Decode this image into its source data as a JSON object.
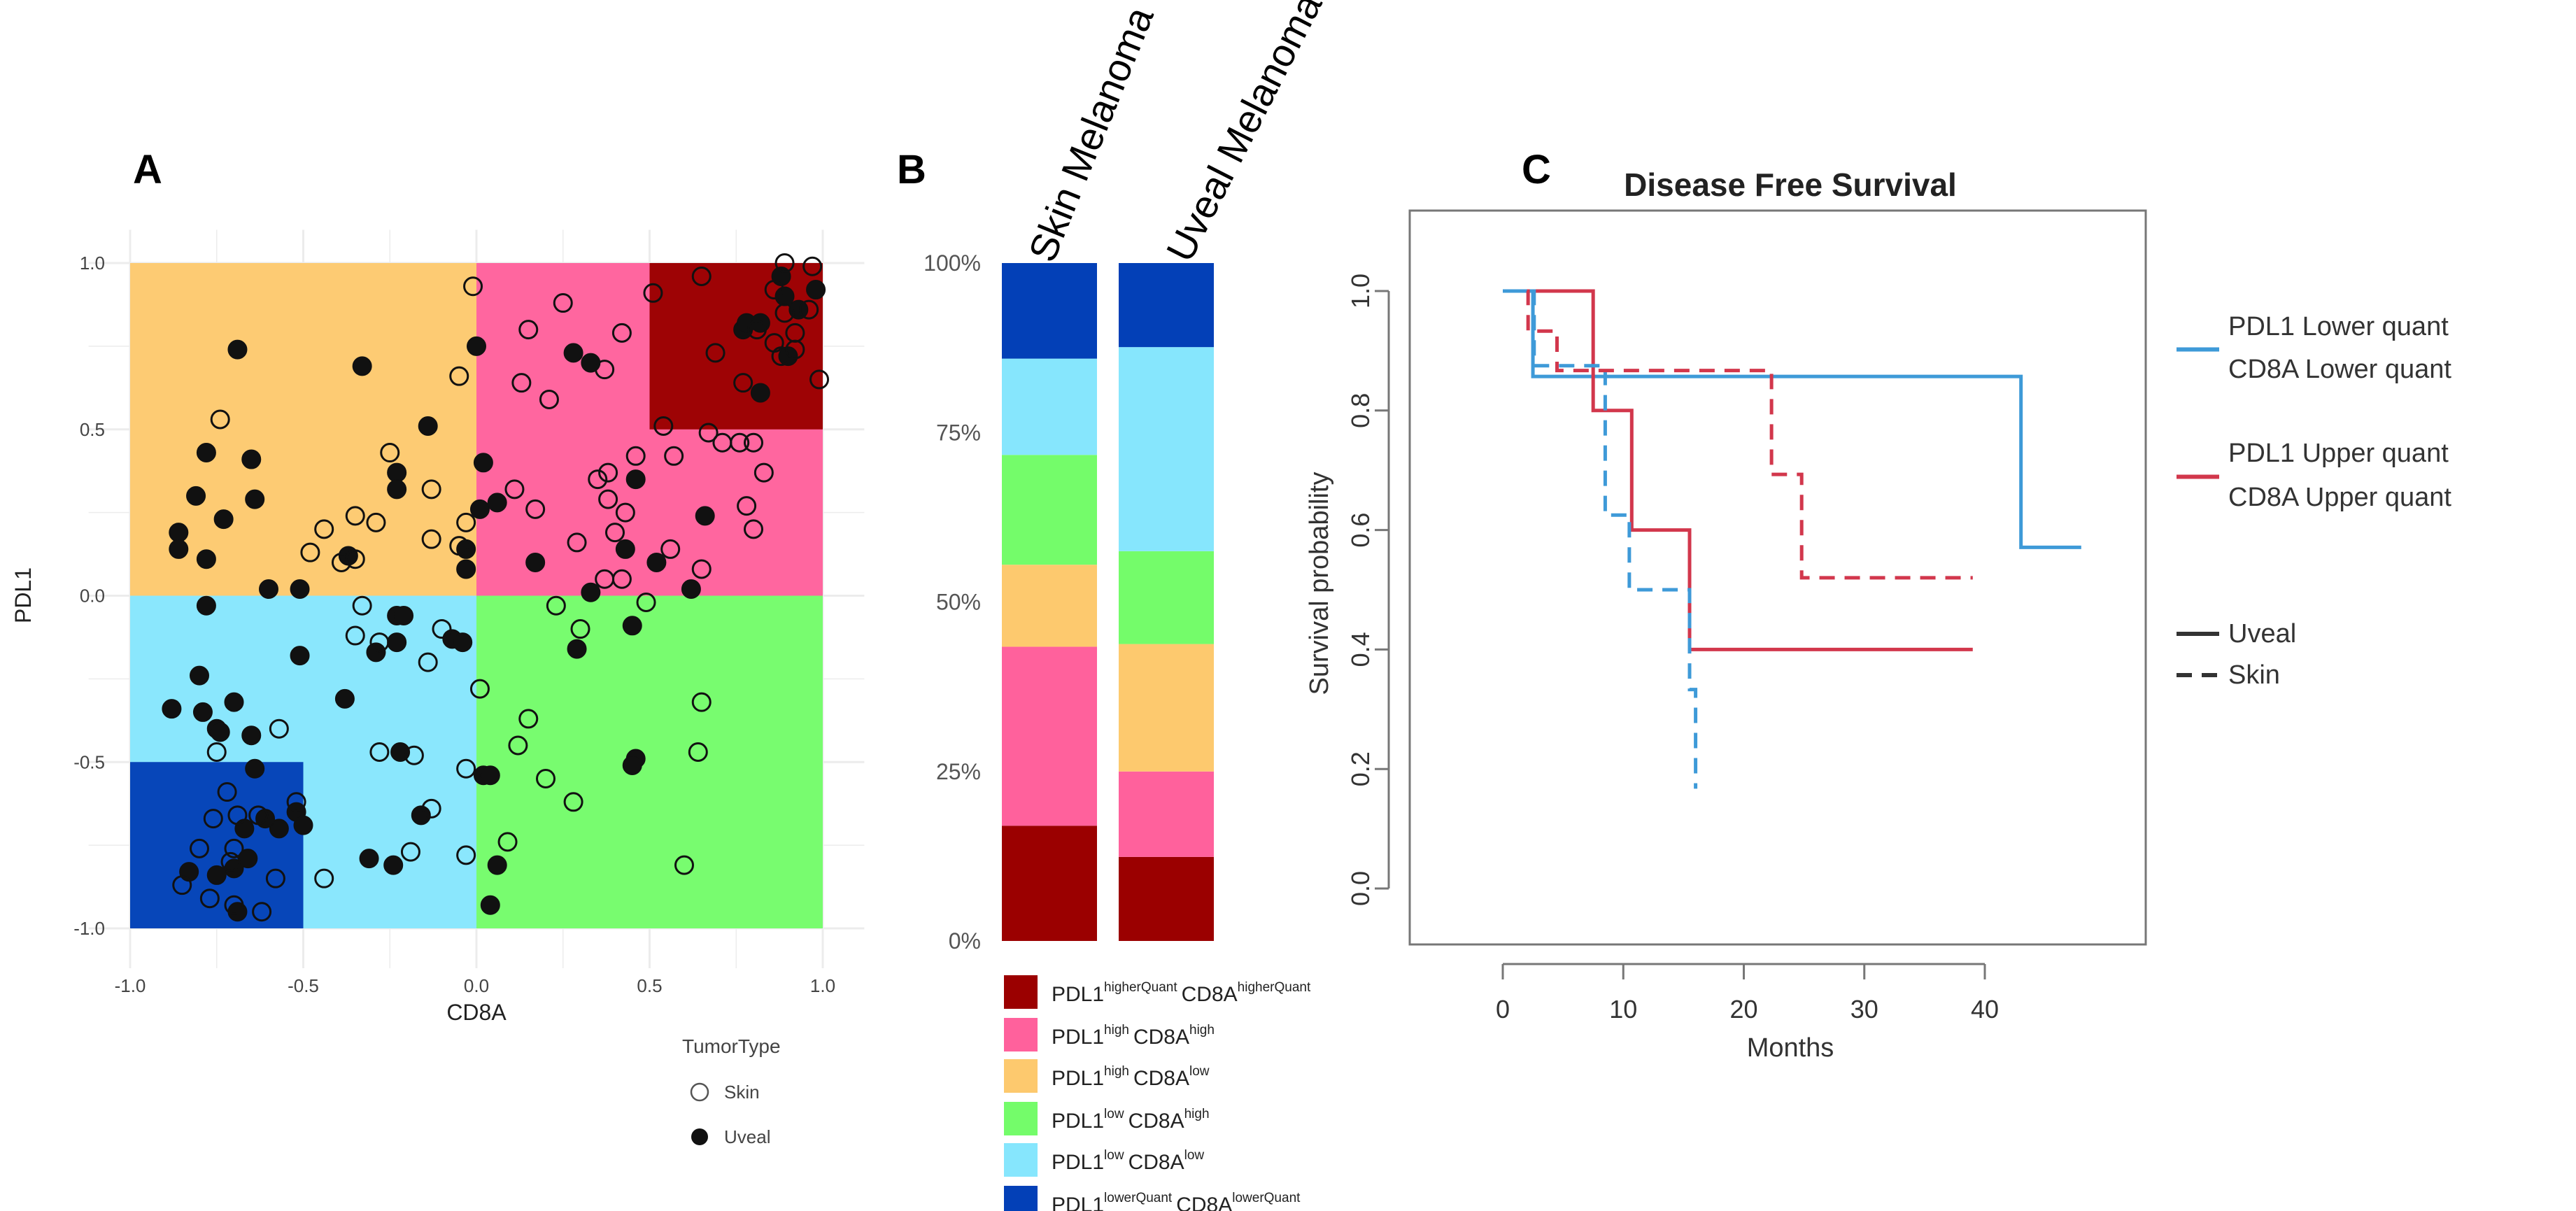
{
  "panels": {
    "a": "A",
    "b": "B",
    "c": "C"
  },
  "colors": {
    "higherQuant": "#9B0000",
    "highhigh": "#FF619C",
    "highlow": "#FDC96E",
    "lowhigh": "#74FC6A",
    "lowlow": "#86E6FD",
    "lowerQuant": "#0340B7",
    "km_blue": "#3E9AD8",
    "km_red": "#D2374C"
  },
  "chart_data": [
    {
      "type": "scatter",
      "xlabel": "CD8A",
      "ylabel": "PDL1",
      "xlim": [
        -1,
        1
      ],
      "ylim": [
        -1,
        1
      ],
      "xticks": [
        "-1.0",
        "-0.5",
        "0.0",
        "0.5",
        "1.0"
      ],
      "yticks": [
        "1.0",
        "0.5",
        "0.0",
        "-0.5",
        "-1.0"
      ],
      "legend": {
        "title": "TumorType",
        "entries": [
          "Skin",
          "Uveal"
        ],
        "placement": "bottom-right"
      },
      "regions": [
        {
          "name": "PDL1 high CD8A low",
          "x": [
            -1,
            0
          ],
          "y": [
            0,
            1
          ],
          "color": "#FDC96E"
        },
        {
          "name": "PDL1 high CD8A high",
          "x": [
            0,
            1
          ],
          "y": [
            0,
            1
          ],
          "color": "#FF619C"
        },
        {
          "name": "PDL1 higherQuant CD8A higherQuant",
          "x": [
            0.5,
            1
          ],
          "y": [
            0.5,
            1
          ],
          "color": "#9B0000"
        },
        {
          "name": "PDL1 low CD8A low",
          "x": [
            -1,
            0
          ],
          "y": [
            -1,
            0
          ],
          "color": "#86E6FD"
        },
        {
          "name": "PDL1 low CD8A high",
          "x": [
            0,
            1
          ],
          "y": [
            -1,
            0
          ],
          "color": "#74FC6A"
        },
        {
          "name": "PDL1 lowerQuant CD8A lowerQuant",
          "x": [
            -1,
            -0.5
          ],
          "y": [
            -1,
            -0.5
          ],
          "color": "#0340B7"
        }
      ],
      "series": [
        {
          "name": "Uveal",
          "marker": "filled",
          "points": [
            [
              -0.69,
              0.74
            ],
            [
              -0.33,
              0.69
            ],
            [
              0.0,
              0.75
            ],
            [
              -0.14,
              0.51
            ],
            [
              -0.78,
              0.43
            ],
            [
              -0.65,
              0.41
            ],
            [
              -0.81,
              0.3
            ],
            [
              -0.64,
              0.29
            ],
            [
              -0.73,
              0.23
            ],
            [
              -0.86,
              0.19
            ],
            [
              -0.86,
              0.14
            ],
            [
              -0.78,
              0.11
            ],
            [
              -0.23,
              0.37
            ],
            [
              -0.23,
              0.32
            ],
            [
              -0.37,
              0.12
            ],
            [
              -0.6,
              0.02
            ],
            [
              -0.51,
              0.02
            ],
            [
              -0.03,
              0.14
            ],
            [
              -0.03,
              0.08
            ],
            [
              0.01,
              0.26
            ],
            [
              0.02,
              0.4
            ],
            [
              0.06,
              0.28
            ],
            [
              0.28,
              0.73
            ],
            [
              0.33,
              0.7
            ],
            [
              0.17,
              0.1
            ],
            [
              0.33,
              0.01
            ],
            [
              0.43,
              0.14
            ],
            [
              0.46,
              0.35
            ],
            [
              0.52,
              0.1
            ],
            [
              0.62,
              0.02
            ],
            [
              0.66,
              0.24
            ],
            [
              0.77,
              0.8
            ],
            [
              0.78,
              0.82
            ],
            [
              0.82,
              0.82
            ],
            [
              0.88,
              0.96
            ],
            [
              0.89,
              0.9
            ],
            [
              0.93,
              0.86
            ],
            [
              0.9,
              0.72
            ],
            [
              0.82,
              0.61
            ],
            [
              0.98,
              0.92
            ],
            [
              -0.78,
              -0.03
            ],
            [
              -0.51,
              -0.18
            ],
            [
              -0.23,
              -0.06
            ],
            [
              -0.21,
              -0.06
            ],
            [
              -0.23,
              -0.14
            ],
            [
              -0.29,
              -0.17
            ],
            [
              -0.07,
              -0.13
            ],
            [
              -0.04,
              -0.14
            ],
            [
              -0.38,
              -0.31
            ],
            [
              -0.7,
              -0.32
            ],
            [
              -0.8,
              -0.24
            ],
            [
              -0.88,
              -0.34
            ],
            [
              -0.79,
              -0.35
            ],
            [
              -0.75,
              -0.4
            ],
            [
              -0.74,
              -0.41
            ],
            [
              -0.65,
              -0.42
            ],
            [
              -0.64,
              -0.52
            ],
            [
              -0.22,
              -0.47
            ],
            [
              -0.16,
              -0.66
            ],
            [
              -0.31,
              -0.79
            ],
            [
              -0.24,
              -0.81
            ],
            [
              -0.52,
              -0.65
            ],
            [
              -0.5,
              -0.69
            ],
            [
              -0.57,
              -0.7
            ],
            [
              -0.61,
              -0.67
            ],
            [
              -0.67,
              -0.7
            ],
            [
              -0.66,
              -0.79
            ],
            [
              -0.7,
              -0.82
            ],
            [
              -0.75,
              -0.84
            ],
            [
              -0.83,
              -0.83
            ],
            [
              -0.69,
              -0.95
            ],
            [
              0.29,
              -0.16
            ],
            [
              0.45,
              -0.09
            ],
            [
              0.46,
              -0.49
            ],
            [
              0.45,
              -0.51
            ],
            [
              0.02,
              -0.54
            ],
            [
              0.04,
              -0.54
            ],
            [
              0.06,
              -0.81
            ],
            [
              0.04,
              -0.93
            ]
          ]
        },
        {
          "name": "Skin",
          "marker": "open",
          "points": [
            [
              -0.01,
              0.93
            ],
            [
              -0.74,
              0.53
            ],
            [
              -0.05,
              0.66
            ],
            [
              -0.25,
              0.43
            ],
            [
              -0.13,
              0.32
            ],
            [
              -0.35,
              0.24
            ],
            [
              -0.29,
              0.22
            ],
            [
              -0.44,
              0.2
            ],
            [
              -0.48,
              0.13
            ],
            [
              -0.39,
              0.1
            ],
            [
              -0.35,
              0.11
            ],
            [
              -0.13,
              0.17
            ],
            [
              -0.05,
              0.15
            ],
            [
              -0.03,
              0.22
            ],
            [
              0.25,
              0.88
            ],
            [
              0.15,
              0.8
            ],
            [
              0.42,
              0.79
            ],
            [
              0.13,
              0.64
            ],
            [
              0.21,
              0.59
            ],
            [
              0.37,
              0.68
            ],
            [
              0.51,
              0.91
            ],
            [
              0.65,
              0.96
            ],
            [
              0.54,
              0.51
            ],
            [
              0.46,
              0.42
            ],
            [
              0.57,
              0.42
            ],
            [
              0.67,
              0.49
            ],
            [
              0.71,
              0.46
            ],
            [
              0.76,
              0.46
            ],
            [
              0.8,
              0.46
            ],
            [
              0.83,
              0.37
            ],
            [
              0.38,
              0.37
            ],
            [
              0.35,
              0.35
            ],
            [
              0.38,
              0.29
            ],
            [
              0.43,
              0.25
            ],
            [
              0.4,
              0.19
            ],
            [
              0.29,
              0.16
            ],
            [
              0.56,
              0.14
            ],
            [
              0.65,
              0.08
            ],
            [
              0.78,
              0.27
            ],
            [
              0.8,
              0.2
            ],
            [
              0.37,
              0.05
            ],
            [
              0.42,
              0.05
            ],
            [
              0.11,
              0.32
            ],
            [
              0.17,
              0.26
            ],
            [
              0.89,
              1.0
            ],
            [
              0.97,
              0.99
            ],
            [
              0.86,
              0.92
            ],
            [
              0.89,
              0.85
            ],
            [
              0.92,
              0.79
            ],
            [
              0.86,
              0.76
            ],
            [
              0.88,
              0.72
            ],
            [
              0.92,
              0.74
            ],
            [
              0.69,
              0.73
            ],
            [
              0.77,
              0.64
            ],
            [
              0.99,
              0.65
            ],
            [
              0.81,
              0.8
            ],
            [
              0.96,
              0.86
            ],
            [
              -0.33,
              -0.03
            ],
            [
              -0.35,
              -0.12
            ],
            [
              -0.28,
              -0.14
            ],
            [
              -0.1,
              -0.1
            ],
            [
              -0.14,
              -0.2
            ],
            [
              -0.57,
              -0.4
            ],
            [
              -0.75,
              -0.47
            ],
            [
              -0.28,
              -0.47
            ],
            [
              -0.18,
              -0.48
            ],
            [
              -0.03,
              -0.52
            ],
            [
              -0.13,
              -0.64
            ],
            [
              -0.19,
              -0.77
            ],
            [
              -0.03,
              -0.78
            ],
            [
              -0.44,
              -0.85
            ],
            [
              -0.72,
              -0.59
            ],
            [
              -0.76,
              -0.67
            ],
            [
              -0.69,
              -0.66
            ],
            [
              -0.63,
              -0.66
            ],
            [
              -0.52,
              -0.62
            ],
            [
              -0.8,
              -0.76
            ],
            [
              -0.7,
              -0.76
            ],
            [
              -0.71,
              -0.8
            ],
            [
              -0.58,
              -0.85
            ],
            [
              -0.85,
              -0.87
            ],
            [
              -0.77,
              -0.91
            ],
            [
              -0.7,
              -0.93
            ],
            [
              -0.62,
              -0.95
            ],
            [
              0.23,
              -0.03
            ],
            [
              0.49,
              -0.02
            ],
            [
              0.3,
              -0.1
            ],
            [
              0.01,
              -0.28
            ],
            [
              0.65,
              -0.32
            ],
            [
              0.15,
              -0.37
            ],
            [
              0.12,
              -0.45
            ],
            [
              0.64,
              -0.47
            ],
            [
              0.2,
              -0.55
            ],
            [
              0.28,
              -0.62
            ],
            [
              0.09,
              -0.74
            ],
            [
              0.6,
              -0.81
            ]
          ]
        }
      ]
    },
    {
      "type": "bar",
      "stacked": true,
      "categories": [
        "Skin Melanoma",
        "Uveal Melanoma"
      ],
      "yticks": [
        "0%",
        "25%",
        "50%",
        "75%",
        "100%"
      ],
      "ylim": [
        0,
        1
      ],
      "series": [
        {
          "key": "higherQuant",
          "base1": "PDL1",
          "sup1": "higherQuant",
          "base2": "CD8A",
          "sup2": "higherQuant",
          "color": "#9B0000",
          "values": [
            0.17,
            0.124
          ]
        },
        {
          "key": "highhigh",
          "base1": "PDL1",
          "sup1": "high",
          "base2": "CD8A",
          "sup2": "high",
          "color": "#FF619C",
          "values": [
            0.264,
            0.126
          ]
        },
        {
          "key": "highlow",
          "base1": "PDL1",
          "sup1": "high",
          "base2": "CD8A",
          "sup2": "low",
          "color": "#FDC96E",
          "values": [
            0.121,
            0.188
          ]
        },
        {
          "key": "lowhigh",
          "base1": "PDL1",
          "sup1": "low",
          "base2": "CD8A",
          "sup2": "high",
          "color": "#74FC6A",
          "values": [
            0.162,
            0.137
          ]
        },
        {
          "key": "lowlow",
          "base1": "PDL1",
          "sup1": "low",
          "base2": "CD8A",
          "sup2": "low",
          "color": "#86E6FD",
          "values": [
            0.142,
            0.301
          ]
        },
        {
          "key": "lowerQuant",
          "base1": "PDL1",
          "sup1": "lowerQuant",
          "base2": "CD8A",
          "sup2": "lowerQuant",
          "color": "#0340B7",
          "values": [
            0.141,
            0.124
          ]
        }
      ],
      "legend_placement": "bottom"
    },
    {
      "type": "line",
      "subtype": "kaplan-meier",
      "title": "Disease Free Survival",
      "xlabel": "Months",
      "ylabel": "Survival probability",
      "xlim": [
        0,
        48
      ],
      "ylim": [
        0,
        1
      ],
      "xticks": [
        "0",
        "10",
        "20",
        "30",
        "40"
      ],
      "yticks": [
        "0.0",
        "0.2",
        "0.4",
        "0.6",
        "0.8",
        "1.0"
      ],
      "legend_groups": [
        {
          "label1": "PDL1 Lower quant",
          "label2": "CD8A Lower quant",
          "color": "#3E9AD8"
        },
        {
          "label1": "PDL1 Upper quant",
          "label2": "CD8A Upper quant",
          "color": "#D2374C"
        }
      ],
      "legend_styles": [
        {
          "label": "Uveal",
          "dash": false
        },
        {
          "label": "Skin",
          "dash": true
        }
      ],
      "series": [
        {
          "name": "Lower quant Uveal",
          "color": "#3E9AD8",
          "dash": false,
          "steps": [
            [
              0,
              1.0
            ],
            [
              2.5,
              0.857
            ],
            [
              43,
              0.571
            ],
            [
              48,
              0.571
            ]
          ]
        },
        {
          "name": "Upper quant Uveal",
          "color": "#D2374C",
          "dash": false,
          "steps": [
            [
              2.5,
              1.0
            ],
            [
              7.5,
              0.8
            ],
            [
              10.7,
              0.6
            ],
            [
              15.5,
              0.4
            ],
            [
              39,
              0.4
            ]
          ]
        },
        {
          "name": "Lower quant Skin",
          "color": "#3E9AD8",
          "dash": true,
          "steps": [
            [
              2.5,
              1.0
            ],
            [
              2.6,
              0.875
            ],
            [
              8.5,
              0.625
            ],
            [
              10.5,
              0.5
            ],
            [
              15.5,
              0.333
            ],
            [
              16,
              0.167
            ],
            [
              16,
              0.167
            ]
          ]
        },
        {
          "name": "Upper quant Skin",
          "color": "#D2374C",
          "dash": true,
          "steps": [
            [
              2,
              1.0
            ],
            [
              2.1,
              0.933
            ],
            [
              4.5,
              0.867
            ],
            [
              22.3,
              0.693
            ],
            [
              24.8,
              0.52
            ],
            [
              39,
              0.52
            ]
          ]
        }
      ]
    }
  ]
}
